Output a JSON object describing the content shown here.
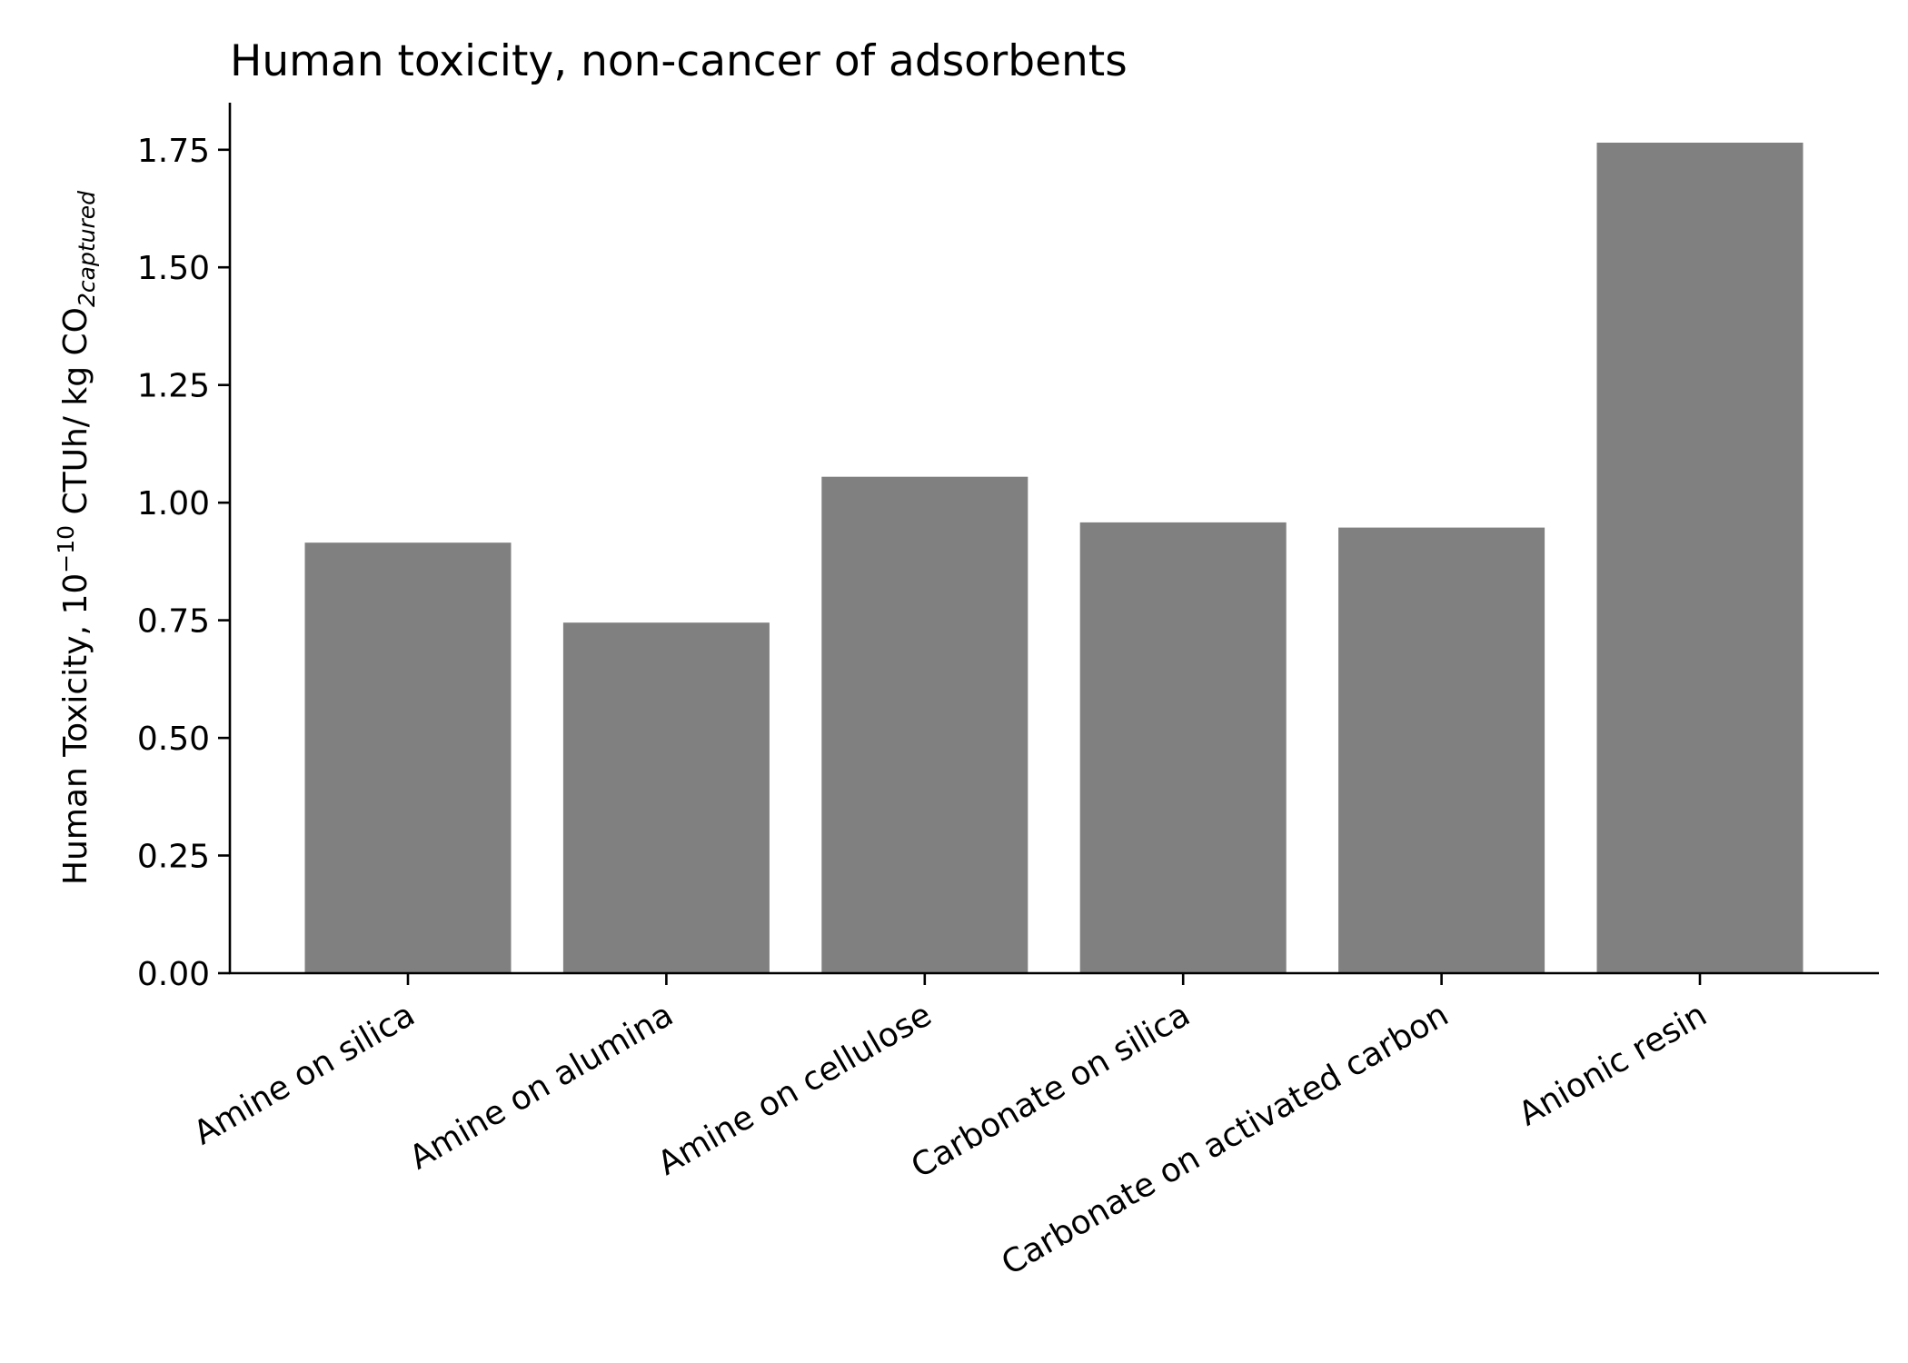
{
  "chart_data": {
    "type": "bar",
    "title": "Human toxicity, non-cancer of adsorbents",
    "ylabel": {
      "prefix": "Human Toxicity, 10",
      "exponent": "−10",
      "middle": " CTUh/ kg CO",
      "subscript": "2captured"
    },
    "xlabel": "",
    "categories": [
      "Amine on silica",
      "Amine on alumina",
      "Amine on cellulose",
      "Carbonate on silica",
      "Carbonate on activated carbon",
      "Anionic resin"
    ],
    "values": [
      0.915,
      0.745,
      1.055,
      0.958,
      0.947,
      1.765
    ],
    "ylim": [
      0,
      1.85
    ],
    "yticks": [
      0.0,
      0.25,
      0.5,
      0.75,
      1.0,
      1.25,
      1.5,
      1.75
    ],
    "ytick_labels": [
      "0.00",
      "0.25",
      "0.50",
      "0.75",
      "1.00",
      "1.25",
      "1.50",
      "1.75"
    ],
    "bar_color": "#808080",
    "grid": false,
    "legend": "none"
  }
}
